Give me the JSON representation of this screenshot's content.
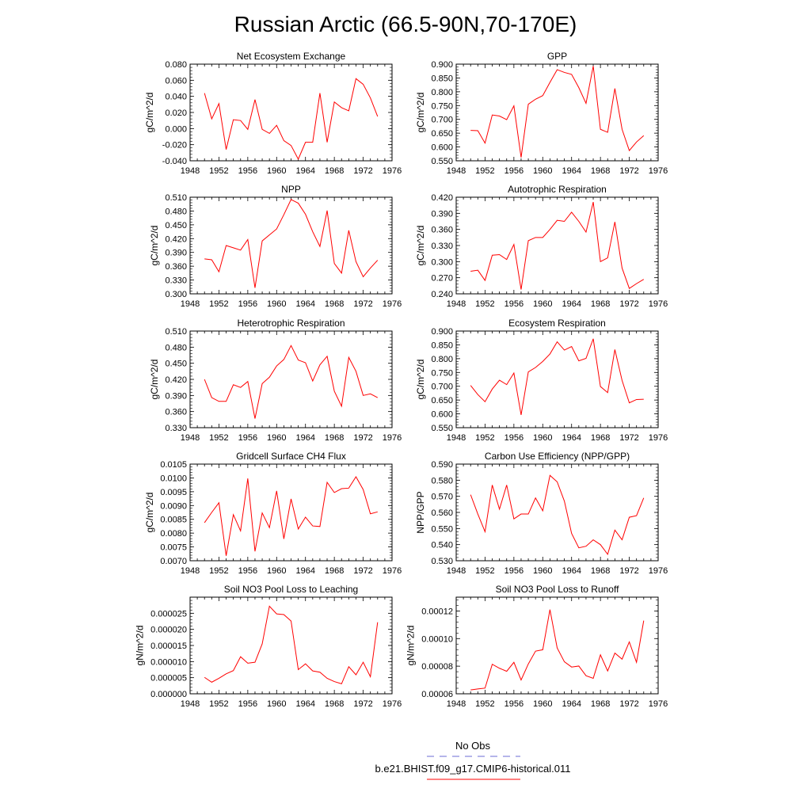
{
  "title": "Russian Arctic (66.5-90N,70-170E)",
  "colors": {
    "model": "#ff0000",
    "obs": "#6b6bd6",
    "axis": "#000000"
  },
  "legend": {
    "obs_label": "No Obs",
    "model_label": "b.e21.BHIST.f09_g17.CMIP6-historical.011"
  },
  "chart_data": [
    {
      "type": "line",
      "title": "Net Ecosystem Exchange",
      "xlabel": "",
      "ylabel": "gC/m^2/d",
      "xlim": [
        1948,
        1976
      ],
      "ylim": [
        -0.04,
        0.08
      ],
      "xticks": [
        "1948",
        "1952",
        "1956",
        "1960",
        "1964",
        "1968",
        "1972",
        "1976"
      ],
      "yticks": [
        "-0.040",
        "-0.020",
        "0.000",
        "0.020",
        "0.040",
        "0.060",
        "0.080"
      ],
      "x": [
        1950,
        1951,
        1952,
        1953,
        1954,
        1955,
        1956,
        1957,
        1958,
        1959,
        1960,
        1961,
        1962,
        1963,
        1964,
        1965,
        1966,
        1967,
        1968,
        1969,
        1970,
        1971,
        1972,
        1973,
        1974
      ],
      "values": [
        0.044,
        0.012,
        0.031,
        -0.026,
        0.011,
        0.01,
        -0.001,
        0.036,
        -0.001,
        -0.006,
        0.004,
        -0.015,
        -0.021,
        -0.038,
        -0.017,
        -0.017,
        0.044,
        -0.017,
        0.033,
        0.026,
        0.022,
        0.062,
        0.055,
        0.038,
        0.015
      ]
    },
    {
      "type": "line",
      "title": "GPP",
      "xlabel": "",
      "ylabel": "gC/m^2/d",
      "xlim": [
        1948,
        1976
      ],
      "ylim": [
        0.55,
        0.9
      ],
      "xticks": [
        "1948",
        "1952",
        "1956",
        "1960",
        "1964",
        "1968",
        "1972",
        "1976"
      ],
      "yticks": [
        "0.550",
        "0.600",
        "0.650",
        "0.700",
        "0.750",
        "0.800",
        "0.850",
        "0.900"
      ],
      "x": [
        1950,
        1951,
        1952,
        1953,
        1954,
        1955,
        1956,
        1957,
        1958,
        1959,
        1960,
        1961,
        1962,
        1963,
        1964,
        1965,
        1966,
        1967,
        1968,
        1969,
        1970,
        1971,
        1972,
        1973,
        1974
      ],
      "values": [
        0.66,
        0.659,
        0.614,
        0.716,
        0.712,
        0.699,
        0.749,
        0.562,
        0.755,
        0.773,
        0.786,
        0.834,
        0.88,
        0.87,
        0.863,
        0.815,
        0.758,
        0.893,
        0.664,
        0.653,
        0.812,
        0.664,
        0.587,
        0.618,
        0.641
      ]
    },
    {
      "type": "line",
      "title": "NPP",
      "xlabel": "",
      "ylabel": "gC/m^2/d",
      "xlim": [
        1948,
        1976
      ],
      "ylim": [
        0.3,
        0.51
      ],
      "xticks": [
        "1948",
        "1952",
        "1956",
        "1960",
        "1964",
        "1968",
        "1972",
        "1976"
      ],
      "yticks": [
        "0.300",
        "0.330",
        "0.360",
        "0.390",
        "0.420",
        "0.450",
        "0.480",
        "0.510"
      ],
      "x": [
        1950,
        1951,
        1952,
        1953,
        1954,
        1955,
        1956,
        1957,
        1958,
        1959,
        1960,
        1961,
        1962,
        1963,
        1964,
        1965,
        1966,
        1967,
        1968,
        1969,
        1970,
        1971,
        1972,
        1973,
        1974
      ],
      "values": [
        0.376,
        0.374,
        0.348,
        0.405,
        0.4,
        0.395,
        0.418,
        0.313,
        0.415,
        0.428,
        0.441,
        0.472,
        0.505,
        0.497,
        0.473,
        0.435,
        0.403,
        0.481,
        0.366,
        0.345,
        0.438,
        0.37,
        0.337,
        0.356,
        0.373
      ]
    },
    {
      "type": "line",
      "title": "Autotrophic Respiration",
      "xlabel": "",
      "ylabel": "gC/m^2/d",
      "xlim": [
        1948,
        1976
      ],
      "ylim": [
        0.24,
        0.42
      ],
      "xticks": [
        "1948",
        "1952",
        "1956",
        "1960",
        "1964",
        "1968",
        "1972",
        "1976"
      ],
      "yticks": [
        "0.240",
        "0.270",
        "0.300",
        "0.330",
        "0.360",
        "0.390",
        "0.420"
      ],
      "x": [
        1950,
        1951,
        1952,
        1953,
        1954,
        1955,
        1956,
        1957,
        1958,
        1959,
        1960,
        1961,
        1962,
        1963,
        1964,
        1965,
        1966,
        1967,
        1968,
        1969,
        1970,
        1971,
        1972,
        1973,
        1974
      ],
      "values": [
        0.282,
        0.284,
        0.265,
        0.312,
        0.313,
        0.304,
        0.332,
        0.248,
        0.339,
        0.345,
        0.345,
        0.36,
        0.377,
        0.375,
        0.392,
        0.375,
        0.355,
        0.411,
        0.3,
        0.307,
        0.374,
        0.288,
        0.25,
        0.259,
        0.267
      ]
    },
    {
      "type": "line",
      "title": "Heterotrophic Respiration",
      "xlabel": "",
      "ylabel": "gC/m^2/d",
      "xlim": [
        1948,
        1976
      ],
      "ylim": [
        0.33,
        0.51
      ],
      "xticks": [
        "1948",
        "1952",
        "1956",
        "1960",
        "1964",
        "1968",
        "1972",
        "1976"
      ],
      "yticks": [
        "0.330",
        "0.360",
        "0.390",
        "0.420",
        "0.450",
        "0.480",
        "0.510"
      ],
      "x": [
        1950,
        1951,
        1952,
        1953,
        1954,
        1955,
        1956,
        1957,
        1958,
        1959,
        1960,
        1961,
        1962,
        1963,
        1964,
        1965,
        1966,
        1967,
        1968,
        1969,
        1970,
        1971,
        1972,
        1973,
        1974
      ],
      "values": [
        0.42,
        0.386,
        0.379,
        0.379,
        0.41,
        0.405,
        0.416,
        0.347,
        0.412,
        0.424,
        0.445,
        0.457,
        0.483,
        0.456,
        0.451,
        0.417,
        0.447,
        0.463,
        0.398,
        0.37,
        0.461,
        0.435,
        0.39,
        0.393,
        0.386
      ]
    },
    {
      "type": "line",
      "title": "Ecosystem Respiration",
      "xlabel": "",
      "ylabel": "gC/m^2/d",
      "xlim": [
        1948,
        1976
      ],
      "ylim": [
        0.55,
        0.9
      ],
      "xticks": [
        "1948",
        "1952",
        "1956",
        "1960",
        "1964",
        "1968",
        "1972",
        "1976"
      ],
      "yticks": [
        "0.550",
        "0.600",
        "0.650",
        "0.700",
        "0.750",
        "0.800",
        "0.850",
        "0.900"
      ],
      "x": [
        1950,
        1951,
        1952,
        1953,
        1954,
        1955,
        1956,
        1957,
        1958,
        1959,
        1960,
        1961,
        1962,
        1963,
        1964,
        1965,
        1966,
        1967,
        1968,
        1969,
        1970,
        1971,
        1972,
        1973,
        1974
      ],
      "values": [
        0.703,
        0.67,
        0.644,
        0.69,
        0.722,
        0.706,
        0.748,
        0.596,
        0.752,
        0.768,
        0.79,
        0.817,
        0.861,
        0.831,
        0.844,
        0.792,
        0.801,
        0.872,
        0.699,
        0.677,
        0.833,
        0.721,
        0.64,
        0.652,
        0.653
      ]
    },
    {
      "type": "line",
      "title": "Gridcell Surface CH4 Flux",
      "xlabel": "",
      "ylabel": "gC/m^2/d",
      "xlim": [
        1948,
        1976
      ],
      "ylim": [
        0.007,
        0.0105
      ],
      "xticks": [
        "1948",
        "1952",
        "1956",
        "1960",
        "1964",
        "1968",
        "1972",
        "1976"
      ],
      "yticks": [
        "0.0070",
        "0.0075",
        "0.0080",
        "0.0085",
        "0.0090",
        "0.0095",
        "0.0100",
        "0.0105"
      ],
      "x": [
        1950,
        1951,
        1952,
        1953,
        1954,
        1955,
        1956,
        1957,
        1958,
        1959,
        1960,
        1961,
        1962,
        1963,
        1964,
        1965,
        1966,
        1967,
        1968,
        1969,
        1970,
        1971,
        1972,
        1973,
        1974
      ],
      "values": [
        0.00838,
        0.00875,
        0.0091,
        0.00718,
        0.00867,
        0.00808,
        0.00998,
        0.00734,
        0.00873,
        0.0082,
        0.00953,
        0.00779,
        0.00924,
        0.00815,
        0.00858,
        0.00826,
        0.00824,
        0.00984,
        0.00947,
        0.00961,
        0.00963,
        0.01004,
        0.00958,
        0.0087,
        0.00877
      ]
    },
    {
      "type": "line",
      "title": "Carbon Use Efficiency (NPP/GPP)",
      "xlabel": "",
      "ylabel": "NPP/GPP",
      "xlim": [
        1948,
        1976
      ],
      "ylim": [
        0.53,
        0.59
      ],
      "xticks": [
        "1948",
        "1952",
        "1956",
        "1960",
        "1964",
        "1968",
        "1972",
        "1976"
      ],
      "yticks": [
        "0.530",
        "0.540",
        "0.550",
        "0.560",
        "0.570",
        "0.580",
        "0.590"
      ],
      "x": [
        1950,
        1951,
        1952,
        1953,
        1954,
        1955,
        1956,
        1957,
        1958,
        1959,
        1960,
        1961,
        1962,
        1963,
        1964,
        1965,
        1966,
        1967,
        1968,
        1969,
        1970,
        1971,
        1972,
        1973,
        1974
      ],
      "values": [
        0.571,
        0.559,
        0.548,
        0.577,
        0.562,
        0.577,
        0.556,
        0.559,
        0.559,
        0.569,
        0.561,
        0.583,
        0.579,
        0.567,
        0.547,
        0.538,
        0.539,
        0.543,
        0.54,
        0.534,
        0.549,
        0.543,
        0.557,
        0.558,
        0.569
      ]
    },
    {
      "type": "line",
      "title": "Soil NO3 Pool Loss to Leaching",
      "xlabel": "",
      "ylabel": "gN/m^2/d",
      "xlim": [
        1948,
        1976
      ],
      "ylim": [
        0,
        3e-05
      ],
      "xticks": [
        "1948",
        "1952",
        "1956",
        "1960",
        "1964",
        "1968",
        "1972",
        "1976"
      ],
      "yticks": [
        "0.000000",
        "0.000005",
        "0.000010",
        "0.000015",
        "0.000020",
        "0.000025"
      ],
      "x": [
        1950,
        1951,
        1952,
        1953,
        1954,
        1955,
        1956,
        1957,
        1958,
        1959,
        1960,
        1961,
        1962,
        1963,
        1964,
        1965,
        1966,
        1967,
        1968,
        1969,
        1970,
        1971,
        1972,
        1973,
        1974
      ],
      "values": [
        5.1e-06,
        3.6e-06,
        4.8e-06,
        6.2e-06,
        7.2e-06,
        1.15e-05,
        9.5e-06,
        9.8e-06,
        1.55e-05,
        2.72e-05,
        2.48e-05,
        2.46e-05,
        2.26e-05,
        7.5e-06,
        9.3e-06,
        7.1e-06,
        6.7e-06,
        4.8e-06,
        3.8e-06,
        3.1e-06,
        8.4e-06,
        5.9e-06,
        9.8e-06,
        5.3e-06,
        2.22e-05
      ]
    },
    {
      "type": "line",
      "title": "Soil NO3 Pool Loss to Runoff",
      "xlabel": "",
      "ylabel": "gN/m^2/d",
      "xlim": [
        1948,
        1976
      ],
      "ylim": [
        6e-05,
        0.00013
      ],
      "xticks": [
        "1948",
        "1952",
        "1956",
        "1960",
        "1964",
        "1968",
        "1972",
        "1976"
      ],
      "yticks": [
        "0.00006",
        "0.00008",
        "0.00010",
        "0.00012"
      ],
      "x": [
        1950,
        1951,
        1952,
        1953,
        1954,
        1955,
        1956,
        1957,
        1958,
        1959,
        1960,
        1961,
        1962,
        1963,
        1964,
        1965,
        1966,
        1967,
        1968,
        1969,
        1970,
        1971,
        1972,
        1973,
        1974
      ],
      "values": [
        6.28e-05,
        6.35e-05,
        6.41e-05,
        8.14e-05,
        7.85e-05,
        7.63e-05,
        8.28e-05,
        7e-05,
        8.16e-05,
        9.09e-05,
        9.19e-05,
        0.000121,
        9.32e-05,
        8.32e-05,
        7.94e-05,
        8.01e-05,
        7.31e-05,
        7.12e-05,
        8.82e-05,
        7.65e-05,
        8.95e-05,
        8.51e-05,
        9.76e-05,
        8.28e-05,
        0.000113
      ]
    }
  ]
}
